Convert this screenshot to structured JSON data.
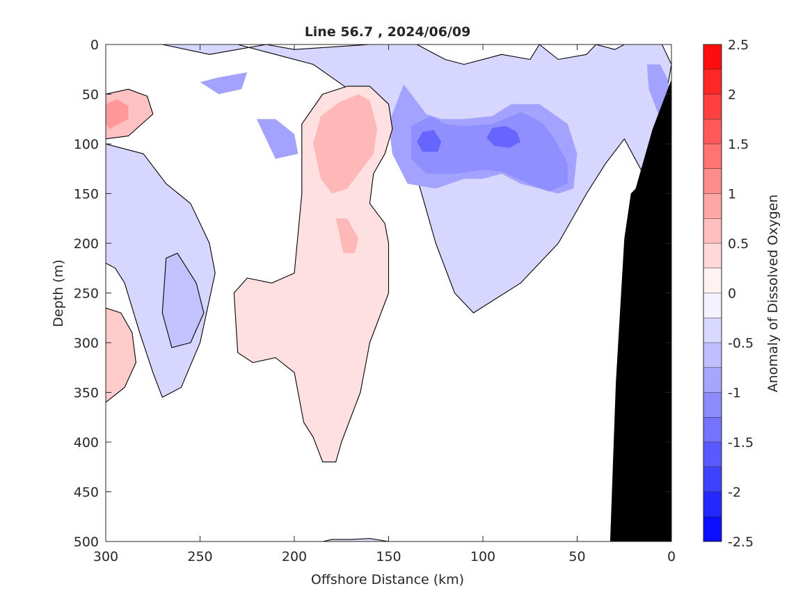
{
  "chart_data": {
    "type": "heatmap",
    "title": "Line 56.7 , 2024/06/09",
    "xlabel": "Offshore Distance (km)",
    "ylabel": "Depth (m)",
    "xlim": [
      300,
      0
    ],
    "ylim": [
      0,
      500
    ],
    "x_reversed": true,
    "y_reversed": true,
    "x_ticks": [
      300,
      250,
      200,
      150,
      100,
      50,
      0
    ],
    "x_tick_labels": [
      "300",
      "250",
      "200",
      "150",
      "100",
      "50",
      "0"
    ],
    "y_ticks": [
      0,
      50,
      100,
      150,
      200,
      250,
      300,
      350,
      400,
      450,
      500
    ],
    "y_tick_labels": [
      "0",
      "50",
      "100",
      "150",
      "200",
      "250",
      "300",
      "350",
      "400",
      "450",
      "500"
    ],
    "colorbar": {
      "label": "Anomaly of Dissolved Oxygen",
      "range": [
        -2.5,
        2.5
      ],
      "step": 0.25,
      "ticks": [
        2.5,
        2,
        1.5,
        1,
        0.5,
        0,
        -0.5,
        -1,
        -1.5,
        -2,
        -2.5
      ],
      "tick_labels": [
        "2.5",
        "2",
        "1.5",
        "1",
        "0.5",
        "0",
        "-0.5",
        "-1",
        "-1.5",
        "-2",
        "-2.5"
      ],
      "high_color": "#ff0000",
      "mid_color": "#ffffff",
      "low_color": "#0000ff"
    },
    "contour_line_level": 0,
    "contour_line_color": "#000000",
    "bathymetry_color": "#000000",
    "bathymetry": {
      "distance_km": [
        32.5,
        29.5,
        25,
        21.5,
        19,
        10,
        0,
        0
      ],
      "depth_m": [
        500,
        340,
        195,
        150,
        145,
        85,
        35,
        500
      ]
    },
    "regions": [
      {
        "name": "",
        "value": -0.4,
        "distance_km": [
          300,
          265,
          230,
          210,
          190,
          175,
          160,
          140,
          125,
          115,
          105,
          80,
          60,
          45,
          35,
          25,
          15,
          10,
          0,
          5,
          25,
          30,
          40,
          45,
          60,
          70,
          75,
          90,
          110,
          120,
          135,
          160,
          200,
          215,
          245,
          270,
          300
        ],
        "depth_m": [
          0,
          0,
          0,
          10,
          20,
          40,
          60,
          100,
          200,
          250,
          270,
          240,
          200,
          150,
          120,
          95,
          130,
          130,
          20,
          0,
          0,
          5,
          0,
          10,
          15,
          0,
          15,
          10,
          20,
          15,
          0,
          0,
          5,
          0,
          10,
          0,
          0
        ]
      },
      {
        "name": "",
        "value": -0.4,
        "distance_km": [
          300,
          280,
          268,
          255,
          250,
          245,
          242,
          250,
          260,
          270,
          275,
          282,
          290,
          295,
          300
        ],
        "depth_m": [
          100,
          110,
          140,
          160,
          180,
          200,
          230,
          300,
          345,
          355,
          330,
          290,
          240,
          225,
          220
        ]
      },
      {
        "name": "",
        "value": -0.3,
        "distance_km": [
          190,
          185,
          180,
          170,
          160,
          150,
          140,
          125,
          115,
          108,
          100,
          90,
          80,
          80,
          90,
          100,
          108,
          120,
          130,
          148,
          150
        ],
        "depth_m": [
          500,
          500,
          498,
          498,
          497,
          500,
          500,
          500,
          500,
          500,
          500,
          500,
          500,
          500,
          500,
          500,
          500,
          500,
          500,
          500,
          500
        ]
      },
      {
        "name": "",
        "value": -0.9,
        "distance_km": [
          250,
          240,
          228,
          225,
          240
        ],
        "depth_m": [
          38,
          50,
          45,
          28,
          33
        ]
      },
      {
        "name": "",
        "value": -0.9,
        "distance_km": [
          220,
          210,
          200,
          198,
          210
        ],
        "depth_m": [
          75,
          75,
          90,
          110,
          115
        ]
      },
      {
        "name": "",
        "value": -0.9,
        "distance_km": [
          142,
          130,
          122,
          110,
          95,
          85,
          70,
          55,
          50,
          52,
          60,
          80,
          90,
          100,
          110,
          125,
          140,
          148,
          150
        ],
        "depth_m": [
          40,
          70,
          75,
          75,
          72,
          60,
          60,
          80,
          110,
          145,
          150,
          140,
          130,
          135,
          135,
          145,
          140,
          110,
          80
        ]
      },
      {
        "name": "",
        "value": -1.1,
        "distance_km": [
          138,
          128,
          120,
          110,
          95,
          80,
          72,
          68,
          62,
          55,
          55,
          65,
          78,
          90,
          100,
          115,
          130,
          138
        ],
        "depth_m": [
          82,
          72,
          80,
          82,
          80,
          68,
          75,
          80,
          95,
          120,
          140,
          148,
          138,
          128,
          126,
          130,
          130,
          115
        ]
      },
      {
        "name": "",
        "value": -1.5,
        "distance_km": [
          132,
          126,
          122,
          124,
          132,
          135
        ],
        "depth_m": [
          88,
          86,
          98,
          108,
          108,
          98
        ]
      },
      {
        "name": "",
        "value": -1.5,
        "distance_km": [
          95,
          88,
          82,
          80,
          86,
          94,
          98
        ],
        "depth_m": [
          84,
          82,
          88,
          98,
          104,
          102,
          94
        ]
      },
      {
        "name": "",
        "value": -0.9,
        "distance_km": [
          13,
          6,
          2,
          0,
          0,
          5,
          12
        ],
        "depth_m": [
          20,
          20,
          35,
          60,
          90,
          80,
          45
        ]
      },
      {
        "name": "",
        "value": -0.6,
        "distance_km": [
          268,
          262,
          252,
          248,
          255,
          265,
          270
        ],
        "depth_m": [
          215,
          210,
          240,
          270,
          300,
          305,
          270
        ]
      },
      {
        "name": "",
        "value": 0.3,
        "distance_km": [
          196,
          185,
          172,
          160,
          150,
          148,
          152,
          158,
          160,
          152,
          150,
          150,
          160,
          165,
          175,
          178,
          185,
          190,
          195,
          200,
          210,
          222,
          230,
          232,
          225,
          212,
          200,
          196
        ],
        "depth_m": [
          80,
          50,
          42,
          42,
          60,
          85,
          110,
          130,
          160,
          180,
          200,
          250,
          300,
          350,
          400,
          420,
          420,
          395,
          380,
          330,
          315,
          320,
          310,
          250,
          235,
          240,
          230,
          150
        ]
      },
      {
        "name": "",
        "value": 0.7,
        "distance_km": [
          186,
          176,
          166,
          160,
          156,
          158,
          164,
          172,
          180,
          186,
          190
        ],
        "depth_m": [
          72,
          58,
          50,
          56,
          85,
          110,
          125,
          145,
          150,
          135,
          100
        ]
      },
      {
        "name": "",
        "value": 0.7,
        "distance_km": [
          178,
          172,
          166,
          168,
          174
        ],
        "depth_m": [
          175,
          175,
          195,
          210,
          210
        ]
      },
      {
        "name": "",
        "value": 0.6,
        "distance_km": [
          300,
          288,
          278,
          275,
          288,
          300
        ],
        "depth_m": [
          50,
          45,
          52,
          70,
          92,
          95
        ]
      },
      {
        "name": "",
        "value": 1.0,
        "distance_km": [
          300,
          294,
          288,
          288,
          298,
          300
        ],
        "depth_m": [
          60,
          55,
          62,
          75,
          85,
          80
        ]
      },
      {
        "name": "",
        "value": 0.5,
        "distance_km": [
          300,
          292,
          286,
          284,
          290,
          300
        ],
        "depth_m": [
          265,
          270,
          290,
          320,
          345,
          360
        ]
      }
    ]
  }
}
